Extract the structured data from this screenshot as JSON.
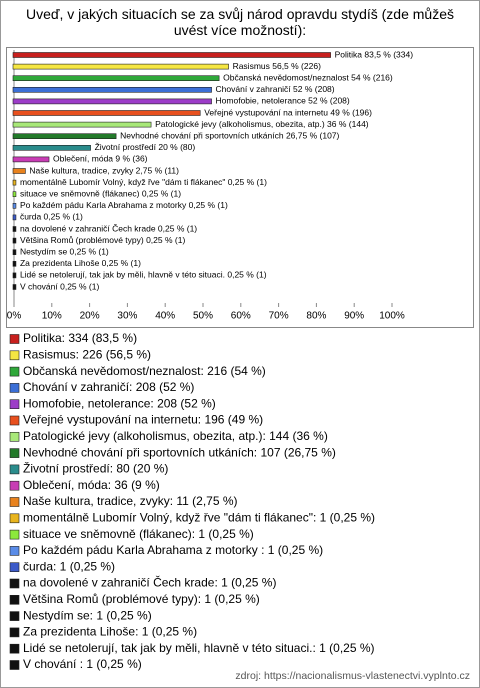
{
  "chart_data": {
    "type": "barh",
    "title": "Uveď, v jakých situacích se za svůj národ opravdu stydíš (zde můžeš uvést více možností):",
    "categories": [
      "Politika",
      "Rasismus",
      "Občanská nevědomost/neznalost",
      "Chování v zahraničí",
      "Homofobie, netolerance",
      "Veřejné vystupování na internetu",
      "Patologické jevy (alkoholismus, obezita, atp.)",
      "Nevhodné chování při sportovních utkáních",
      "Životní prostředí",
      "Oblečení, móda",
      "Naše kultura, tradice, zvyky",
      "momentálně Lubomír Volný, když řve \"dám ti flákanec\"",
      "situace ve sněmovně (flákanec)",
      "Po každém pádu Karla Abrahama z motorky",
      "čurda",
      "na dovolené v zahraničí Čech krade",
      "Většina Romů (problémové typy)",
      "Nestydím se",
      "Za prezidenta Lihoše",
      "Lidé se netolerují, tak jak by měli, hlavně v této situaci.",
      "V chování"
    ],
    "values": [
      83.5,
      56.5,
      54,
      52,
      52,
      49,
      36,
      26.75,
      20,
      9,
      2.75,
      0.25,
      0.25,
      0.25,
      0.25,
      0.25,
      0.25,
      0.25,
      0.25,
      0.25,
      0.25
    ],
    "value_labels": [
      "Politika 83,5 % (334)",
      "Rasismus 56,5 % (226)",
      "Občanská nevědomost/neznalost 54 % (216)",
      "Chování v zahraničí 52 % (208)",
      "Homofobie, netolerance 52 % (208)",
      "Veřejné vystupování na internetu 49 % (196)",
      "Patologické jevy (alkoholismus, obezita, atp.) 36 % (144)",
      "Nevhodné chování při sportovních utkáních 26,75 % (107)",
      "Životní prostředí 20 % (80)",
      "Oblečení, móda 9 % (36)",
      "Naše kultura, tradice, zvyky 2,75 % (11)",
      "momentálně Lubomír Volný, když řve \"dám ti flákanec\" 0,25 % (1)",
      "situace ve sněmovně (flákanec) 0,25 % (1)",
      "Po každém pádu Karla Abrahama z motorky  0,25 % (1)",
      "čurda 0,25 % (1)",
      "na dovolené v zahraničí Čech krade 0,25 % (1)",
      "Většina Romů (problémové typy) 0,25 % (1)",
      "Nestydím se 0,25 % (1)",
      "Za prezidenta Lihoše 0,25 % (1)",
      "Lidé se netolerují, tak jak by měli, hlavně v této situaci. 0,25 % (1)",
      "V chování  0,25 % (1)"
    ],
    "legend_labels": [
      "Politika: 334 (83,5 %)",
      "Rasismus: 226 (56,5 %)",
      "Občanská nevědomost/neznalost: 216 (54 %)",
      "Chování v zahraničí: 208 (52 %)",
      "Homofobie, netolerance: 208 (52 %)",
      "Veřejné vystupování na internetu: 196 (49 %)",
      "Patologické jevy (alkoholismus, obezita, atp.): 144 (36 %)",
      "Nevhodné chování při sportovních utkáních: 107 (26,75 %)",
      "Životní prostředí: 80 (20 %)",
      "Oblečení, móda: 36 (9 %)",
      "Naše kultura, tradice, zvyky: 11 (2,75 %)",
      "momentálně Lubomír Volný, když řve \"dám ti flákanec\": 1 (0,25 %)",
      "situace ve sněmovně (flákanec): 1 (0,25 %)",
      "Po každém pádu Karla Abrahama z motorky : 1 (0,25 %)",
      "čurda: 1 (0,25 %)",
      "na dovolené v zahraničí Čech krade: 1 (0,25 %)",
      "Většina Romů (problémové typy): 1 (0,25 %)",
      "Nestydím se: 1 (0,25 %)",
      "Za prezidenta Lihoše: 1 (0,25 %)",
      "Lidé se netolerují, tak jak by měli, hlavně v této situaci.: 1 (0,25 %)",
      "V chování : 1 (0,25 %)"
    ],
    "colors": [
      "#c8201e",
      "#f5e642",
      "#2fa83a",
      "#3b6fd6",
      "#9c3cc8",
      "#e8501e",
      "#a8e878",
      "#237a2a",
      "#2a8c8c",
      "#c83cb4",
      "#e8821e",
      "#e8b41e",
      "#8ce83c",
      "#5a8ce8",
      "#3c5ac8",
      "#111111",
      "#111111",
      "#111111",
      "#111111",
      "#111111",
      "#111111"
    ],
    "xlim": [
      0,
      100
    ],
    "xticks": [
      {
        "value": 0,
        "label": "0%"
      },
      {
        "value": 10,
        "label": "10%"
      },
      {
        "value": 20,
        "label": "20%"
      },
      {
        "value": 30,
        "label": "30%"
      },
      {
        "value": 40,
        "label": "40%"
      },
      {
        "value": 50,
        "label": "50%"
      },
      {
        "value": 60,
        "label": "60%"
      },
      {
        "value": 70,
        "label": "70%"
      },
      {
        "value": 80,
        "label": "80%"
      },
      {
        "value": 90,
        "label": "90%"
      },
      {
        "value": 100,
        "label": "100%"
      }
    ],
    "source": "zdroj: https://nacionalismus-vlastenectvi.vyplnto.cz"
  }
}
